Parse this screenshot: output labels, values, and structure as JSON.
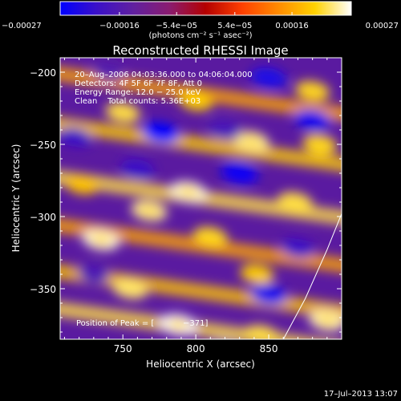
{
  "chart_data": {
    "type": "heatmap",
    "title": "Reconstructed RHESSI Image",
    "xlabel": "Heliocentric X (arcsec)",
    "ylabel": "Heliocentric Y (arcsec)",
    "xlim": [
      707,
      900
    ],
    "ylim": [
      -385,
      -190
    ],
    "x_ticks": [
      750,
      800,
      850
    ],
    "y_ticks": [
      -200,
      -250,
      -300,
      -350
    ],
    "x_tick_labels": [
      "750",
      "800",
      "850"
    ],
    "y_tick_labels": [
      "−200",
      "−250",
      "−300",
      "−350"
    ],
    "colorbar": {
      "range": [
        -0.00027,
        0.00027
      ],
      "ticks": [
        -0.00027,
        -0.00016,
        -5.4e-05,
        5.4e-05,
        0.00016,
        0.00027
      ],
      "tick_labels": [
        "−0.00027",
        "−0.00016",
        "−5.4e−05",
        "5.4e−05",
        "0.00016",
        "0.00027"
      ],
      "unit_label": "(photons cm⁻² s⁻¹ asec⁻²)",
      "colormap": [
        "#0000ff",
        "#3a10c8",
        "#6020a0",
        "#8a1c70",
        "#b40000",
        "#ff4000",
        "#ff8c00",
        "#ffd200",
        "#ffffff"
      ]
    },
    "info_lines": [
      "20–Aug–2006 04:03:36.000 to 04:06:04.000",
      "Detectors: 4F 5F 6F 7F 8F, Att 0",
      "Energy Range: 12.0 − 25.0 keV",
      "Clean    Total counts: 5.36E+03"
    ],
    "peak_label": "Position of Peak = [",
    "peak_value": "−371]",
    "limb_curve": {
      "x": [
        860,
        875,
        890,
        900
      ],
      "y": [
        -385,
        -357,
        -323,
        -298
      ]
    },
    "stripes": [
      {
        "center_y": -215,
        "x_range": [
          707,
          900
        ],
        "value": 0.00016
      },
      {
        "center_y": -250,
        "x_range": [
          707,
          900
        ],
        "value": 0.0002
      },
      {
        "center_y": -287,
        "x_range": [
          707,
          900
        ],
        "value": 0.00022
      },
      {
        "center_y": -320,
        "x_range": [
          707,
          900
        ],
        "value": 0.00016
      },
      {
        "center_y": -352,
        "x_range": [
          707,
          900
        ],
        "value": 0.00019
      },
      {
        "center_y": -378,
        "x_range": [
          707,
          900
        ],
        "value": 0.00022
      }
    ],
    "blobs": [
      {
        "x": 795,
        "y": -283,
        "value": 0.00026
      },
      {
        "x": 768,
        "y": -296,
        "value": 0.00024
      },
      {
        "x": 750,
        "y": -228,
        "value": 0.00022
      },
      {
        "x": 838,
        "y": -248,
        "value": 0.00024
      },
      {
        "x": 800,
        "y": -220,
        "value": 0.0002
      },
      {
        "x": 880,
        "y": -213,
        "value": 0.00021
      },
      {
        "x": 868,
        "y": -290,
        "value": 0.00022
      },
      {
        "x": 735,
        "y": -316,
        "value": 0.00026
      },
      {
        "x": 810,
        "y": -314,
        "value": 0.00021
      },
      {
        "x": 755,
        "y": -350,
        "value": 0.00023
      },
      {
        "x": 842,
        "y": -340,
        "value": 0.0002
      },
      {
        "x": 788,
        "y": -375,
        "value": 0.00027
      },
      {
        "x": 845,
        "y": -382,
        "value": 0.00022
      },
      {
        "x": 890,
        "y": -372,
        "value": 0.00025
      },
      {
        "x": 885,
        "y": -250,
        "value": 0.00021
      },
      {
        "x": 722,
        "y": -278,
        "value": 0.00019
      },
      {
        "x": 740,
        "y": -200,
        "value": -0.00016
      },
      {
        "x": 760,
        "y": -267,
        "value": -0.0002
      },
      {
        "x": 850,
        "y": -204,
        "value": -0.00024
      },
      {
        "x": 776,
        "y": -242,
        "value": -0.00027
      },
      {
        "x": 830,
        "y": -270,
        "value": -0.00026
      },
      {
        "x": 880,
        "y": -233,
        "value": -0.00025
      },
      {
        "x": 850,
        "y": -354,
        "value": -0.00025
      },
      {
        "x": 870,
        "y": -322,
        "value": -0.0002
      },
      {
        "x": 717,
        "y": -245,
        "value": -0.0002
      },
      {
        "x": 820,
        "y": -392,
        "value": -0.00018
      },
      {
        "x": 820,
        "y": -240,
        "value": -0.00018
      },
      {
        "x": 730,
        "y": -340,
        "value": -0.00017
      }
    ]
  },
  "footer": {
    "timestamp": "17–Jul–2013 13:07"
  }
}
